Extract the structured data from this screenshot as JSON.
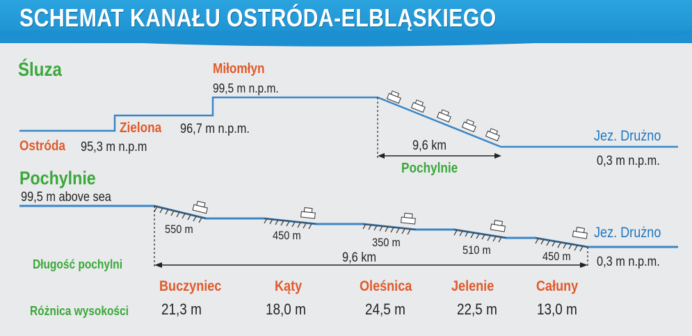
{
  "title": "SCHEMAT KANAŁU OSTRÓDA-ELBLĄSKIEGO",
  "colors": {
    "header": "#1b8fcf",
    "water": "#3a86c6",
    "green": "#3aa83a",
    "red": "#e05a2a"
  },
  "locks": {
    "heading": "Śluza",
    "ostroda": {
      "name": "Ostróda",
      "elevation": "95,3 m n.p.m"
    },
    "zielona": {
      "name": "Zielona",
      "elevation": "96,7 m n.p.m."
    },
    "milomlyn": {
      "name": "Miłomłyn",
      "elevation": "99,5 m n.p.m."
    },
    "inclined_length": "9,6 km",
    "inclined_label": "Pochylnie",
    "druzno": {
      "name": "Jez. Drużno",
      "elevation": "0,3 m n.p.m."
    }
  },
  "inclines": {
    "heading": "Pochylnie",
    "start_elevation": "99,5 m above sea",
    "length_label": "Długość pochylni",
    "total_length": "9,6 km",
    "height_diff_label": "Różnica wysokości",
    "druzno": {
      "name": "Jez. Drużno",
      "elevation": "0,3 m n.p.m."
    },
    "items": [
      {
        "name": "Buczyniec",
        "length": "550 m",
        "height_diff": "21,3 m"
      },
      {
        "name": "Kąty",
        "length": "450 m",
        "height_diff": "18,0 m"
      },
      {
        "name": "Oleśnica",
        "length": "350 m",
        "height_diff": "24,5 m"
      },
      {
        "name": "Jelenie",
        "length": "510 m",
        "height_diff": "22,5 m"
      },
      {
        "name": "Całuny",
        "length": "450 m",
        "height_diff": "13,0 m"
      }
    ]
  }
}
